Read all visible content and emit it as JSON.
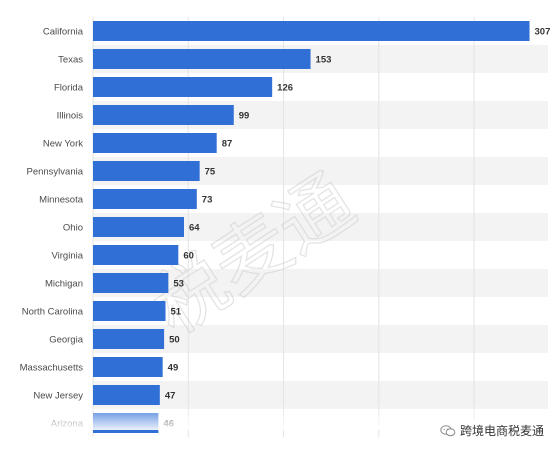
{
  "chart_data": {
    "type": "bar",
    "orientation": "horizontal",
    "categories": [
      "California",
      "Texas",
      "Florida",
      "Illinois",
      "New York",
      "Pennsylvania",
      "Minnesota",
      "Ohio",
      "Virginia",
      "Michigan",
      "North Carolina",
      "Georgia",
      "Massachusetts",
      "New Jersey",
      "Arizona"
    ],
    "values": [
      307,
      153,
      126,
      99,
      87,
      75,
      73,
      64,
      60,
      53,
      51,
      50,
      49,
      47,
      46
    ],
    "title": "",
    "xlabel": "",
    "ylabel": "",
    "xlim": [
      0,
      320
    ],
    "grid": true,
    "legend": "none",
    "colors": {
      "bar": "#2f6fd6",
      "label": "#4b4b4b",
      "value_label": "#333333",
      "stripe": "#f3f3f3",
      "grid": "#e3e3e3"
    }
  },
  "watermark": {
    "text": "税麦通"
  },
  "source_badge": {
    "icon": "wechat-icon",
    "text": "跨境电商税麦通"
  }
}
